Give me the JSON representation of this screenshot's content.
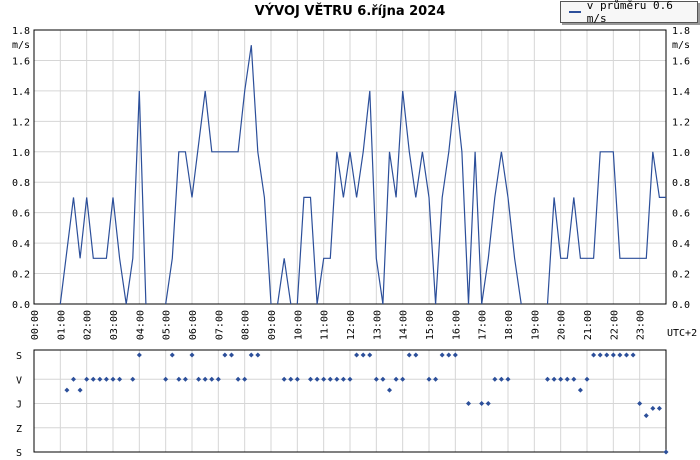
{
  "chart_data": {
    "type": "line",
    "title": "VÝVOJ VĚTRU  6.října 2024",
    "legend": [
      "v průměru 0.6 m/s"
    ],
    "ylabel": "m/s",
    "timezone_label": "UTC+2",
    "ylim": [
      0,
      1.8
    ],
    "yticks": [
      "0.0",
      "0.2",
      "0.4",
      "0.6",
      "0.8",
      "1.0",
      "1.2",
      "1.4",
      "1.6",
      "1.8"
    ],
    "xticks": [
      "00:00",
      "01:00",
      "02:00",
      "03:00",
      "04:00",
      "05:00",
      "06:00",
      "07:00",
      "08:00",
      "09:00",
      "10:00",
      "11:00",
      "12:00",
      "13:00",
      "14:00",
      "15:00",
      "16:00",
      "17:00",
      "18:00",
      "19:00",
      "20:00",
      "21:00",
      "22:00",
      "23:00"
    ],
    "series_color": "#2c4f9a",
    "segments": [
      [
        [
          1.0,
          0.0
        ],
        [
          1.5,
          0.7
        ],
        [
          1.75,
          0.3
        ],
        [
          2.0,
          0.7
        ],
        [
          2.25,
          0.3
        ],
        [
          2.5,
          0.3
        ],
        [
          2.75,
          0.3
        ],
        [
          3.0,
          0.7
        ],
        [
          3.25,
          0.3
        ],
        [
          3.5,
          0.0
        ],
        [
          3.75,
          0.3
        ],
        [
          4.0,
          1.4
        ],
        [
          4.25,
          0.0
        ]
      ],
      [
        [
          5.0,
          0.0
        ],
        [
          5.25,
          0.3
        ],
        [
          5.5,
          1.0
        ],
        [
          5.75,
          1.0
        ],
        [
          6.0,
          0.7
        ],
        [
          6.5,
          1.4
        ],
        [
          6.75,
          1.0
        ],
        [
          7.0,
          1.0
        ],
        [
          7.25,
          1.0
        ],
        [
          7.5,
          1.0
        ],
        [
          7.75,
          1.0
        ],
        [
          8.0,
          1.4
        ],
        [
          8.25,
          1.7
        ],
        [
          8.5,
          1.0
        ],
        [
          8.75,
          0.7
        ],
        [
          9.0,
          0.0
        ]
      ],
      [
        [
          9.25,
          0.0
        ],
        [
          9.5,
          0.3
        ],
        [
          9.75,
          0.0
        ]
      ],
      [
        [
          10.0,
          0.0
        ],
        [
          10.25,
          0.7
        ],
        [
          10.5,
          0.7
        ],
        [
          10.75,
          0.0
        ],
        [
          11.0,
          0.3
        ],
        [
          11.25,
          0.3
        ],
        [
          11.5,
          1.0
        ],
        [
          11.75,
          0.7
        ],
        [
          12.0,
          1.0
        ],
        [
          12.25,
          0.7
        ],
        [
          12.5,
          1.0
        ],
        [
          12.75,
          1.4
        ],
        [
          13.0,
          0.3
        ],
        [
          13.25,
          0.0
        ]
      ],
      [
        [
          13.25,
          0.0
        ],
        [
          13.5,
          1.0
        ],
        [
          13.75,
          0.7
        ],
        [
          14.0,
          1.4
        ],
        [
          14.25,
          1.0
        ],
        [
          14.5,
          0.7
        ],
        [
          14.75,
          1.0
        ],
        [
          15.0,
          0.7
        ],
        [
          15.25,
          0.0
        ],
        [
          15.5,
          0.7
        ],
        [
          15.75,
          1.0
        ],
        [
          16.0,
          1.4
        ],
        [
          16.25,
          1.0
        ],
        [
          16.5,
          0.0
        ],
        [
          16.75,
          1.0
        ],
        [
          17.0,
          0.0
        ],
        [
          17.25,
          0.3
        ],
        [
          17.5,
          0.7
        ],
        [
          17.75,
          1.0
        ],
        [
          18.0,
          0.7
        ],
        [
          18.25,
          0.3
        ],
        [
          18.5,
          0.0
        ]
      ],
      [
        [
          19.5,
          0.0
        ],
        [
          19.75,
          0.7
        ],
        [
          20.0,
          0.3
        ],
        [
          20.25,
          0.3
        ],
        [
          20.5,
          0.7
        ],
        [
          20.75,
          0.3
        ],
        [
          21.0,
          0.3
        ],
        [
          21.25,
          0.3
        ],
        [
          21.5,
          1.0
        ],
        [
          21.75,
          1.0
        ],
        [
          22.0,
          1.0
        ],
        [
          22.25,
          0.3
        ],
        [
          22.5,
          0.3
        ],
        [
          22.75,
          0.3
        ],
        [
          23.0,
          0.3
        ],
        [
          23.25,
          0.3
        ],
        [
          23.5,
          1.0
        ],
        [
          23.75,
          0.7
        ],
        [
          24.0,
          0.7
        ]
      ]
    ],
    "direction": {
      "ylabels": [
        "S",
        "V",
        "J",
        "Z",
        "S"
      ],
      "points": [
        [
          1.25,
          "V"
        ],
        [
          1.5,
          "V"
        ],
        [
          1.75,
          "V"
        ],
        [
          2.0,
          "V"
        ],
        [
          2.25,
          "V"
        ],
        [
          2.5,
          "V"
        ],
        [
          2.75,
          "V"
        ],
        [
          3.0,
          "V"
        ],
        [
          3.25,
          "V"
        ],
        [
          3.75,
          "V"
        ],
        [
          4.0,
          "S"
        ],
        [
          5.0,
          "V"
        ],
        [
          5.25,
          "S"
        ],
        [
          5.5,
          "V"
        ],
        [
          5.75,
          "V"
        ],
        [
          6.0,
          "S"
        ],
        [
          6.25,
          "V"
        ],
        [
          6.5,
          "V"
        ],
        [
          6.75,
          "V"
        ],
        [
          7.0,
          "V"
        ],
        [
          7.25,
          "S"
        ],
        [
          7.5,
          "S"
        ],
        [
          7.75,
          "V"
        ],
        [
          8.0,
          "V"
        ],
        [
          8.25,
          "S"
        ],
        [
          8.5,
          "S"
        ],
        [
          9.5,
          "V"
        ],
        [
          9.75,
          "V"
        ],
        [
          10.0,
          "V"
        ],
        [
          10.5,
          "V"
        ],
        [
          10.75,
          "V"
        ],
        [
          11.0,
          "V"
        ],
        [
          11.25,
          "V"
        ],
        [
          11.5,
          "V"
        ],
        [
          11.75,
          "V"
        ],
        [
          12.0,
          "V"
        ],
        [
          12.25,
          "S"
        ],
        [
          12.5,
          "S"
        ],
        [
          12.75,
          "S"
        ],
        [
          13.0,
          "V"
        ],
        [
          13.25,
          "V"
        ],
        [
          13.5,
          "V"
        ],
        [
          13.75,
          "V"
        ],
        [
          14.0,
          "V"
        ],
        [
          14.25,
          "S"
        ],
        [
          14.5,
          "S"
        ],
        [
          15.0,
          "V"
        ],
        [
          15.25,
          "V"
        ],
        [
          15.5,
          "S"
        ],
        [
          15.75,
          "S"
        ],
        [
          16.0,
          "S"
        ],
        [
          16.5,
          "J"
        ],
        [
          17.0,
          "J"
        ],
        [
          17.25,
          "J"
        ],
        [
          17.5,
          "V"
        ],
        [
          17.75,
          "V"
        ],
        [
          18.0,
          "V"
        ],
        [
          19.5,
          "V"
        ],
        [
          19.75,
          "V"
        ],
        [
          20.0,
          "V"
        ],
        [
          20.25,
          "V"
        ],
        [
          20.5,
          "V"
        ],
        [
          20.75,
          "V"
        ],
        [
          21.0,
          "V"
        ],
        [
          21.25,
          "S"
        ],
        [
          21.5,
          "S"
        ],
        [
          21.75,
          "S"
        ],
        [
          22.0,
          "S"
        ],
        [
          22.25,
          "S"
        ],
        [
          22.5,
          "S"
        ],
        [
          22.75,
          "S"
        ],
        [
          23.0,
          "J"
        ],
        [
          23.25,
          "J"
        ],
        [
          23.5,
          "J"
        ],
        [
          23.75,
          "J"
        ],
        [
          24.0,
          "S"
        ]
      ],
      "offsets": {
        "23.0": 0.2,
        "23.25": 0.5,
        "23.5": 0.2,
        "23.75": 0.2,
        "24.0": 0.5,
        "1.25": 0.45,
        "1.5": 0.0,
        "1.75": 0.45,
        "2.0": 0.0,
        "3.0": 0.0,
        "3.75": 0.0,
        "5.0": 0.0,
        "9.75": 0.0,
        "10.5": 0.0,
        "10.75": 0.0,
        "12.0": 0.45,
        "13.0": 0.45,
        "13.5": 0.45,
        "14.25": 0.0,
        "17.0": 0.45,
        "20.75": 0.45,
        "21.0": 0.45
      }
    }
  }
}
